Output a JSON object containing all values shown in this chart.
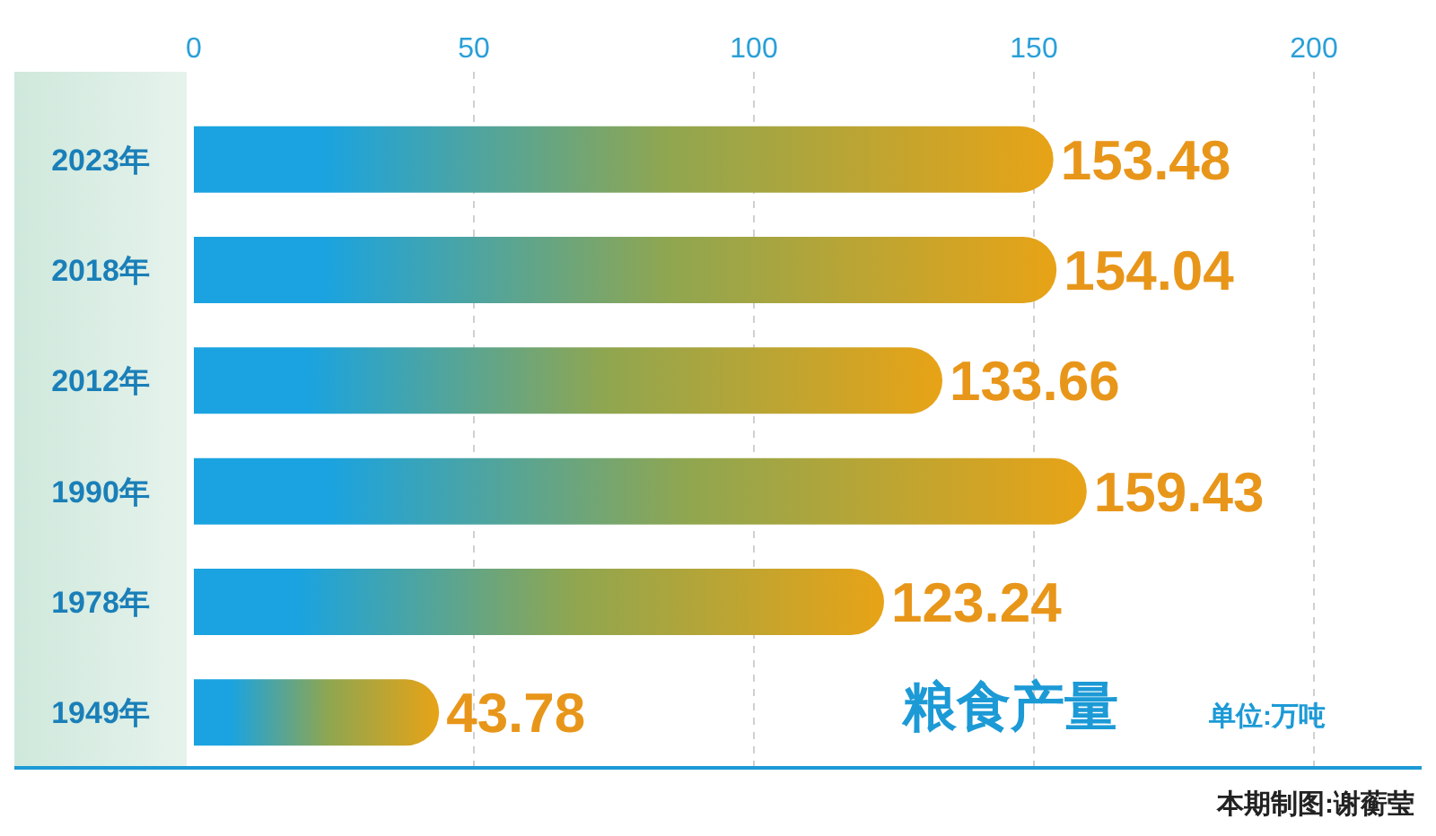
{
  "chart_data": {
    "type": "bar",
    "orientation": "horizontal",
    "title": "粮食产量",
    "annotations": [
      "单位:万吨",
      "本期制图:谢蘅莹"
    ],
    "categories": [
      "2023年",
      "2018年",
      "2012年",
      "1990年",
      "1978年",
      "1949年"
    ],
    "values": [
      153.48,
      154.04,
      133.66,
      159.43,
      123.24,
      43.78
    ],
    "color": "#1aa3e0",
    "xlim": [
      0,
      200
    ],
    "xticks": [
      0,
      50,
      100,
      150,
      200
    ],
    "grid": "x",
    "data_labels": true
  }
}
